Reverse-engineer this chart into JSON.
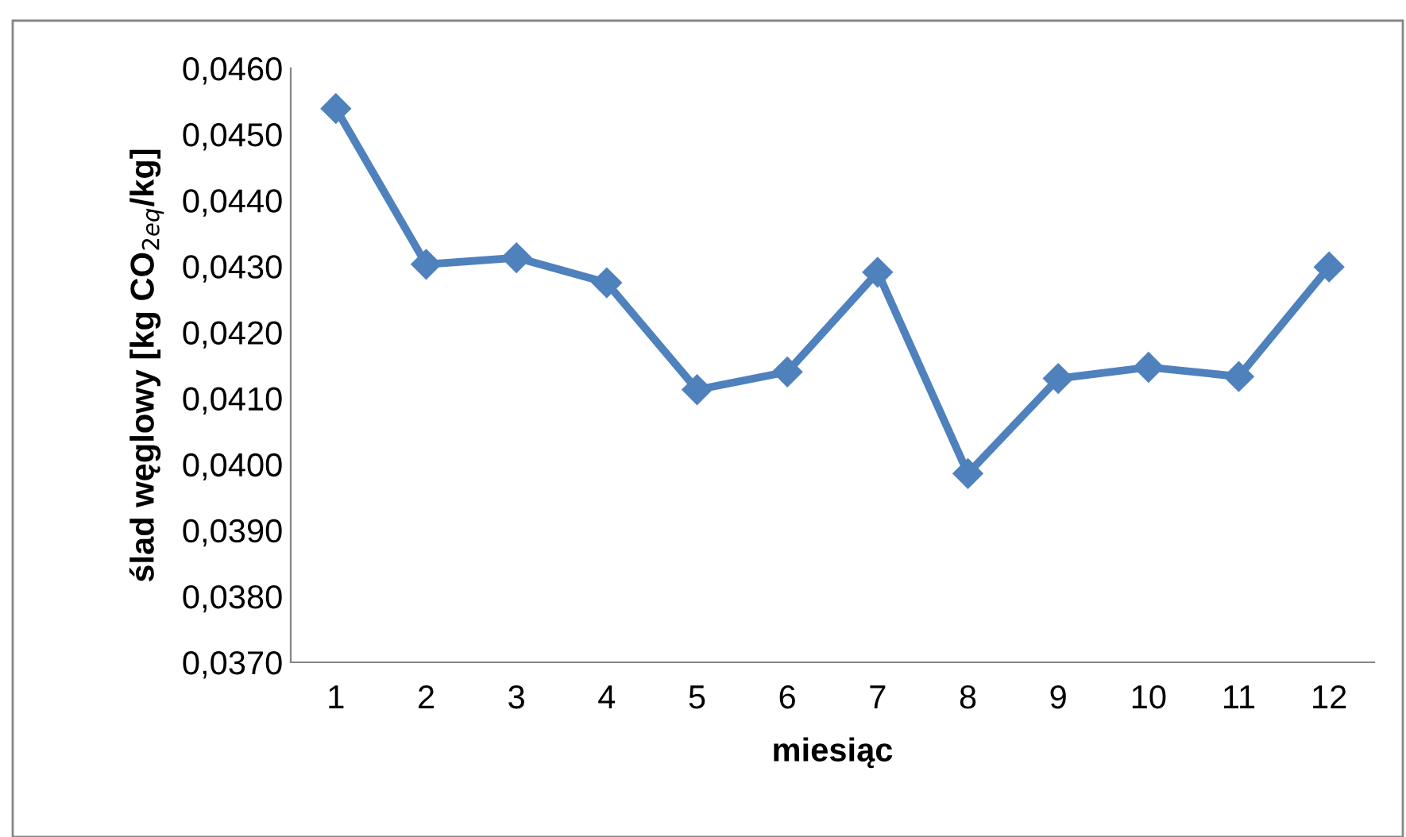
{
  "chart_data": {
    "type": "line",
    "xlabel": "miesiąc",
    "ylabel": "ślad węglowy [kg CO$_{2eq}$/kg]",
    "categories": [
      "1",
      "2",
      "3",
      "4",
      "5",
      "6",
      "7",
      "8",
      "9",
      "10",
      "11",
      "12"
    ],
    "series": [
      {
        "color": "#4f81bd",
        "values": [
          0.04539,
          0.04303,
          0.04313,
          0.04275,
          0.04113,
          0.0414,
          0.04291,
          0.03986,
          0.0413,
          0.04147,
          0.04133,
          0.04299
        ]
      }
    ],
    "ylim": [
      0.037,
      0.046
    ],
    "yticks": [
      {
        "value": 0.037,
        "label": "0,0370"
      },
      {
        "value": 0.038,
        "label": "0,0380"
      },
      {
        "value": 0.039,
        "label": "0,0390"
      },
      {
        "value": 0.04,
        "label": "0,0400"
      },
      {
        "value": 0.041,
        "label": "0,0410"
      },
      {
        "value": 0.042,
        "label": "0,0420"
      },
      {
        "value": 0.043,
        "label": "0,0430"
      },
      {
        "value": 0.044,
        "label": "0,0440"
      },
      {
        "value": 0.045,
        "label": "0,0450"
      },
      {
        "value": 0.046,
        "label": "0,0460"
      }
    ],
    "grid": false,
    "legend": false,
    "marker": "diamond",
    "line_style": "solid"
  }
}
